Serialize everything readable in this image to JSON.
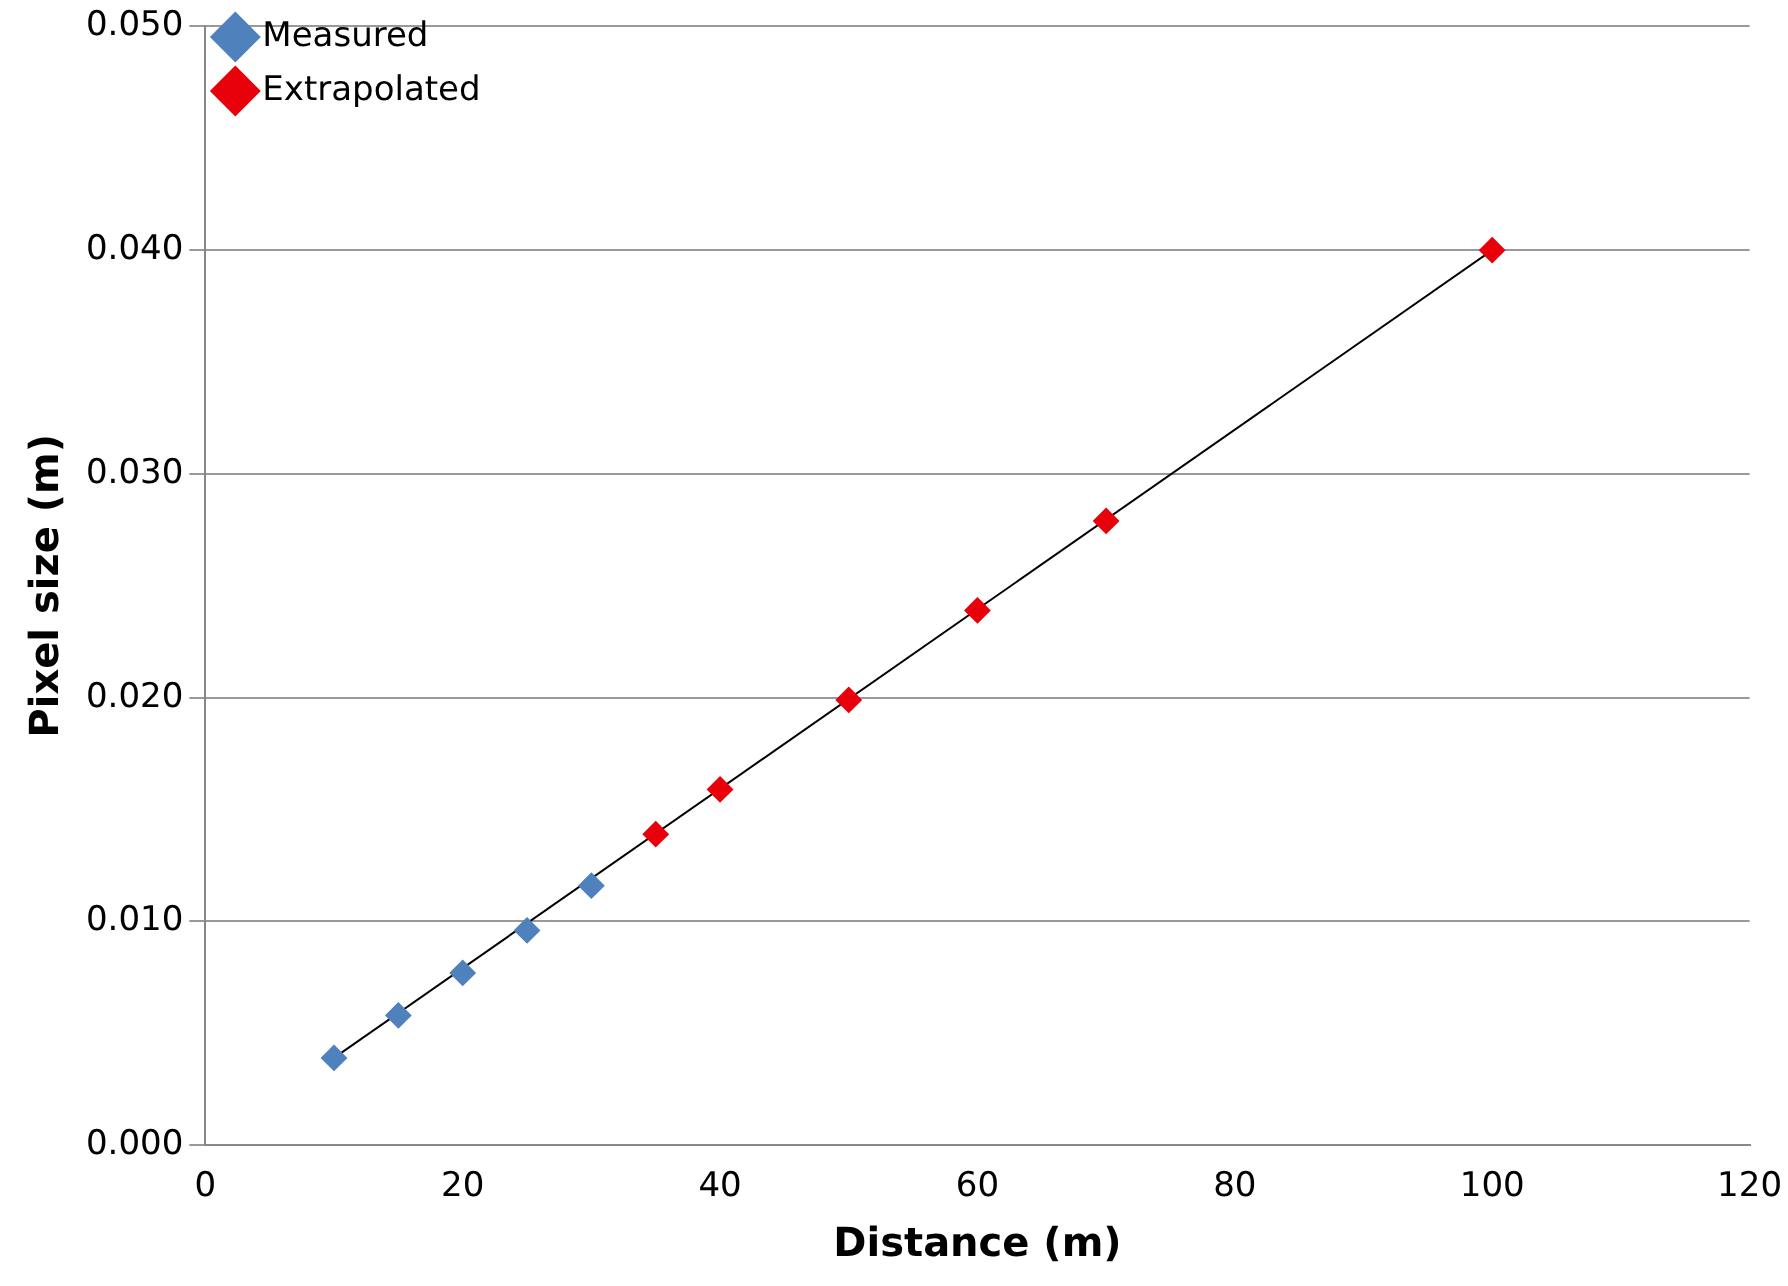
{
  "chart_data": {
    "type": "scatter",
    "xlabel": "Distance (m)",
    "ylabel": "Pixel size (m)",
    "xlim": [
      0,
      120
    ],
    "xticks": [
      0,
      20,
      40,
      60,
      80,
      100,
      120
    ],
    "ylim": [
      0,
      0.05
    ],
    "yticks": [
      {
        "value": 0,
        "label": "0.000"
      },
      {
        "value": 0.01,
        "label": "0.010"
      },
      {
        "value": 0.02,
        "label": "0.020"
      },
      {
        "value": 0.03,
        "label": "0.030"
      },
      {
        "value": 0.04,
        "label": "0.040"
      },
      {
        "value": 0.05,
        "label": "0.050"
      }
    ],
    "grid": "y",
    "legend": "top left",
    "marker": "diamond",
    "series": [
      {
        "type": "line",
        "color": "#000000",
        "x": [
          10,
          100
        ],
        "values": [
          0.0039,
          0.04
        ],
        "marker": "none"
      },
      {
        "name": "Measured",
        "color": "#4f81bd",
        "x": [
          10,
          15,
          20,
          25,
          30
        ],
        "values": [
          0.0039,
          0.0058,
          0.0077,
          0.0096,
          0.0116
        ]
      },
      {
        "name": "Extrapolated",
        "color": "#e8000b",
        "x": [
          35,
          40,
          50,
          60,
          70,
          100
        ],
        "values": [
          0.0139,
          0.0159,
          0.0199,
          0.0239,
          0.0279,
          0.04
        ]
      }
    ]
  }
}
